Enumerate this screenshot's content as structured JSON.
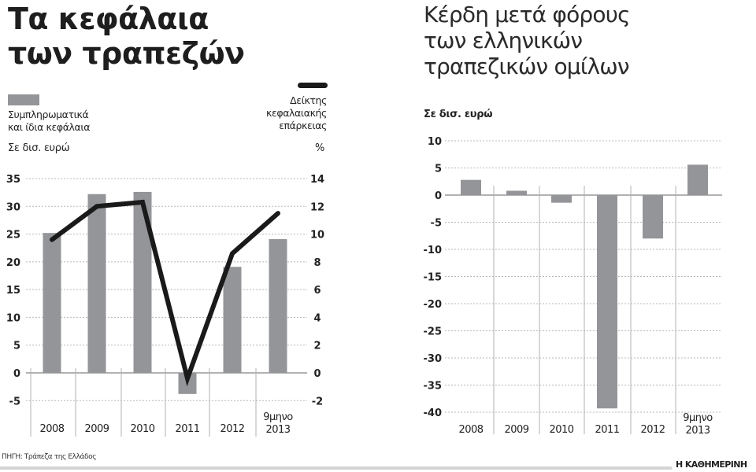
{
  "left_chart": {
    "title_line1": "Τα κεφάλαια",
    "title_line2": "των τραπεζών",
    "legend_bar_line1": "Συμπληρωματικά",
    "legend_bar_line2": "και ίδια κεφάλαια",
    "legend_line_line1": "Δείκτης",
    "legend_line_line2": "κεφαλαιακής",
    "legend_line_line3": "επάρκειας",
    "unit_left": "Σε δισ. ευρώ",
    "unit_right": "%"
  },
  "right_chart": {
    "title_line1": "Κέρδη μετά φόρους",
    "title_line2": "των ελληνικών",
    "title_line3": "τραπεζικών ομίλων",
    "unit": "Σε δισ. ευρώ"
  },
  "footer": {
    "source": "ΠΗΓΗ: Τράπεζα της Ελλάδος",
    "brand": "Η ΚΑΘΗΜΕΡΙΝΗ"
  },
  "colors": {
    "bar": "#939598",
    "line": "#1a1a1a",
    "grid": "#b8b8b8",
    "divider": "#b0b0b0"
  },
  "chart_data": [
    {
      "type": "bar",
      "title": "Τα κεφάλαια των τραπεζών",
      "categories": [
        "2008",
        "2009",
        "2010",
        "2011",
        "2012",
        "9μηνο 2013"
      ],
      "series": [
        {
          "name": "Συμπληρωματικά και ίδια κεφάλαια",
          "type": "bar",
          "axis": "left",
          "values": [
            25.2,
            32.2,
            32.6,
            -3.8,
            19.1,
            24.1
          ]
        },
        {
          "name": "Δείκτης κεφαλαιακής επάρκειας",
          "type": "line",
          "axis": "right",
          "values": [
            9.6,
            12.0,
            12.3,
            -0.4,
            8.6,
            11.5
          ]
        }
      ],
      "ylabel": "Σε δισ. ευρώ",
      "ylabel_right": "%",
      "ylim": [
        -5,
        35
      ],
      "yticks": [
        35,
        30,
        25,
        20,
        15,
        10,
        5,
        0,
        -5
      ],
      "ylim_right": [
        -2,
        14
      ],
      "yticks_right": [
        14,
        12,
        10,
        8,
        6,
        4,
        2,
        0,
        -2
      ],
      "grid": true,
      "legend_position": "top"
    },
    {
      "type": "bar",
      "title": "Κέρδη μετά φόρους των ελληνικών τραπεζικών ομίλων",
      "categories": [
        "2008",
        "2009",
        "2010",
        "2011",
        "2012",
        "9μηνο 2013"
      ],
      "values": [
        2.8,
        0.8,
        -1.4,
        -39.3,
        -8.0,
        5.6
      ],
      "ylabel": "Σε δισ. ευρώ",
      "ylim": [
        -40,
        10
      ],
      "yticks": [
        10,
        5,
        0,
        -5,
        -10,
        -15,
        -20,
        -25,
        -30,
        -35,
        -40
      ],
      "grid": true
    }
  ],
  "axis_labels": {
    "left_ticks": [
      "35",
      "30",
      "25",
      "20",
      "15",
      "10",
      "5",
      "0",
      "-5"
    ],
    "right_ticks": [
      "14",
      "12",
      "10",
      "8",
      "6",
      "4",
      "2",
      "0",
      "-2"
    ],
    "r_ticks": [
      "10",
      "5",
      "0",
      "-5",
      "-10",
      "-15",
      "-20",
      "-25",
      "-30",
      "-35",
      "-40"
    ],
    "cat": [
      "2008",
      "2009",
      "2010",
      "2011",
      "2012"
    ],
    "cat_last_line1": "9μηνο",
    "cat_last_line2": "2013"
  }
}
